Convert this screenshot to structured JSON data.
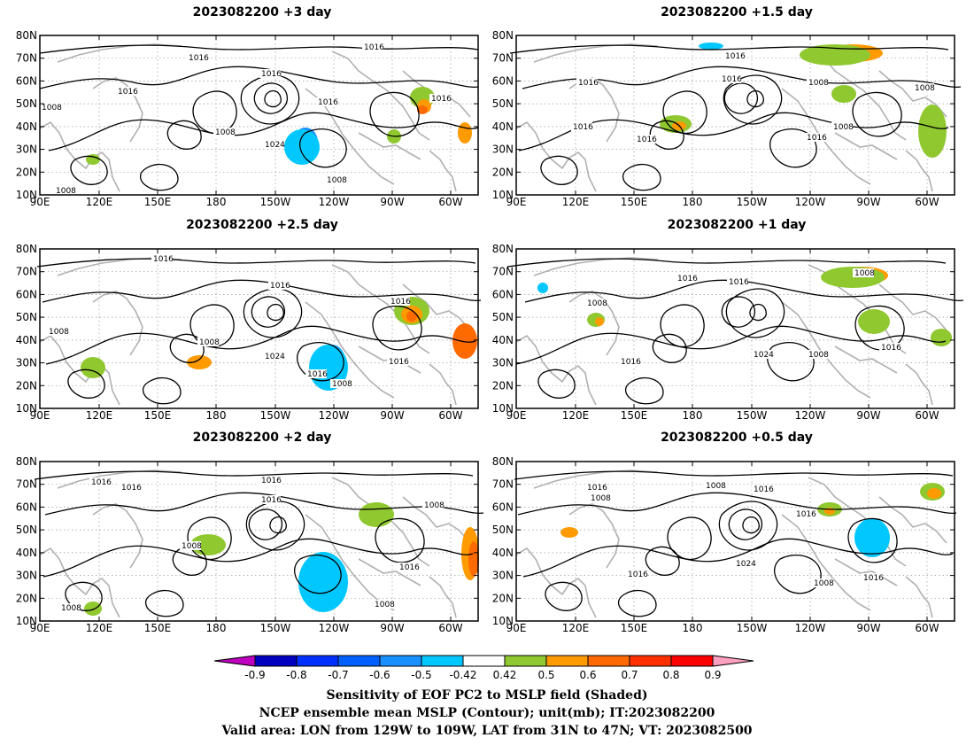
{
  "panels": [
    {
      "title": "2023082200 +3 day",
      "labels": [
        "1016",
        "1016",
        "1016",
        "1016",
        "1008",
        "1008",
        "1024",
        "1008",
        "1016",
        "1008",
        "1016"
      ]
    },
    {
      "title": "2023082200 +1.5 day",
      "labels": [
        "1016",
        "1016",
        "1016",
        "1008",
        "1016",
        "1008",
        "1016",
        "1016",
        "1008"
      ]
    },
    {
      "title": "2023082200 +2.5 day",
      "labels": [
        "1016",
        "1016",
        "1008",
        "1008",
        "1024",
        "1016",
        "1016",
        "1008",
        "1016"
      ]
    },
    {
      "title": "2023082200 +1 day",
      "labels": [
        "1016",
        "1016",
        "1008",
        "1008",
        "1016",
        "1024",
        "1008",
        "1016"
      ]
    },
    {
      "title": "2023082200 +2 day",
      "labels": [
        "1016",
        "1016",
        "1016",
        "1016",
        "1008",
        "1008",
        "1016",
        "1008",
        "1008"
      ]
    },
    {
      "title": "2023082200 +0.5 day",
      "labels": [
        "1016",
        "1008",
        "1008",
        "1016",
        "1016",
        "1024",
        "1016",
        "1008",
        "1016"
      ]
    }
  ],
  "map": {
    "lat_ticks": [
      "80N",
      "70N",
      "60N",
      "50N",
      "40N",
      "30N",
      "20N",
      "10N"
    ],
    "lon_ticks": [
      "90E",
      "120E",
      "150E",
      "180",
      "150W",
      "120W",
      "90W",
      "60W"
    ],
    "lon_range": [
      "90E",
      "40W"
    ],
    "lat_range": [
      "10N",
      "80N"
    ]
  },
  "colorbar": {
    "labels": [
      "-0.9",
      "-0.8",
      "-0.7",
      "-0.6",
      "-0.5",
      "-0.42",
      "0.42",
      "0.5",
      "0.6",
      "0.7",
      "0.8",
      "0.9"
    ],
    "colors": [
      "#c000c0",
      "#0000c0",
      "#0030ff",
      "#0060ff",
      "#1890ff",
      "#00c8ff",
      "#ffffff",
      "#90c830",
      "#ff9a00",
      "#ff6a00",
      "#ff3000",
      "#ff0000",
      "#ffa0c0"
    ]
  },
  "caption": {
    "line1": "Sensitivity of EOF PC2 to MSLP field (Shaded)",
    "line2": "NCEP ensemble mean MSLP (Contour); unit(mb); IT:2023082200",
    "line3": "Valid area: LON from 129W to 109W, LAT from 31N to 47N; VT: 2023082500"
  }
}
